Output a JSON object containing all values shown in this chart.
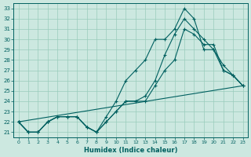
{
  "xlabel": "Humidex (Indice chaleur)",
  "ylabel": "",
  "xlim": [
    -0.5,
    23.5
  ],
  "ylim": [
    20.5,
    33.5
  ],
  "xticks": [
    0,
    1,
    2,
    3,
    4,
    5,
    6,
    7,
    8,
    9,
    10,
    11,
    12,
    13,
    14,
    15,
    16,
    17,
    18,
    19,
    20,
    21,
    22,
    23
  ],
  "yticks": [
    21,
    22,
    23,
    24,
    25,
    26,
    27,
    28,
    29,
    30,
    31,
    32,
    33
  ],
  "bg_color": "#cce8e0",
  "line_color": "#006060",
  "grid_color": "#99ccbb",
  "lines": [
    {
      "x": [
        0,
        1,
        2,
        3,
        4,
        5,
        6,
        7,
        8,
        9,
        10,
        11,
        12,
        13,
        14,
        15,
        16,
        17,
        18,
        19,
        20,
        21,
        22,
        23
      ],
      "y": [
        22,
        21,
        21,
        22,
        22.5,
        22.5,
        22.5,
        21.5,
        21,
        22.5,
        24,
        26,
        27,
        28,
        30,
        30,
        31,
        33,
        32,
        29,
        29,
        27,
        26.5,
        25.5
      ],
      "marker": true
    },
    {
      "x": [
        0,
        1,
        2,
        3,
        4,
        5,
        6,
        7,
        8,
        9,
        10,
        11,
        12,
        13,
        14,
        15,
        16,
        17,
        18,
        19,
        20,
        21,
        22,
        23
      ],
      "y": [
        22,
        21,
        21,
        22,
        22.5,
        22.5,
        22.5,
        21.5,
        21,
        22,
        23,
        24,
        24,
        24.5,
        26,
        28.5,
        30.5,
        32,
        31,
        30,
        29,
        27.5,
        26.5,
        25.5
      ],
      "marker": true
    },
    {
      "x": [
        0,
        1,
        2,
        3,
        4,
        5,
        6,
        7,
        8,
        9,
        10,
        11,
        12,
        13,
        14,
        15,
        16,
        17,
        18,
        19,
        20,
        21,
        22,
        23
      ],
      "y": [
        22,
        21,
        21,
        22,
        22.5,
        22.5,
        22.5,
        21.5,
        21,
        22,
        23,
        24,
        24,
        24,
        25.5,
        27,
        28,
        31,
        30.5,
        29.5,
        29.5,
        27,
        26.5,
        25.5
      ],
      "marker": true
    },
    {
      "x": [
        0,
        23
      ],
      "y": [
        22,
        25.5
      ],
      "marker": false
    }
  ]
}
